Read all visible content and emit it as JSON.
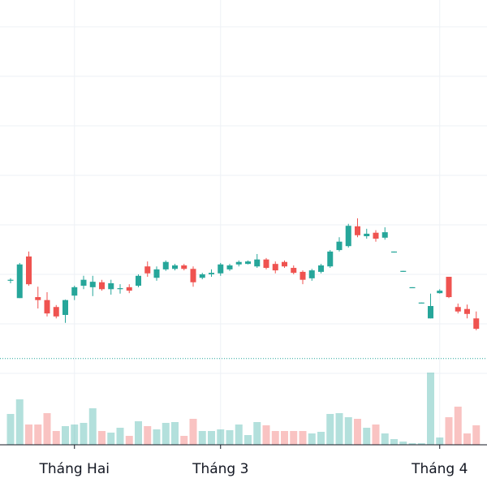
{
  "chart_data": {
    "type": "candlestick",
    "categories": [
      null,
      null,
      null,
      null,
      null,
      null,
      null,
      "Tháng Hai",
      null,
      null,
      null,
      null,
      null,
      null,
      null,
      null,
      null,
      null,
      null,
      null,
      null,
      null,
      null,
      "Tháng 3",
      null,
      null,
      null,
      null,
      null,
      null,
      null,
      null,
      null,
      null,
      null,
      null,
      null,
      null,
      null,
      null,
      null,
      null,
      null,
      null,
      null,
      null,
      null,
      "Tháng 4",
      null,
      null,
      null,
      null
    ],
    "open": [
      28.7,
      25.2,
      33.6,
      25.4,
      24.8,
      23.4,
      21.8,
      25.7,
      27.7,
      27.4,
      28.4,
      27.0,
      27.0,
      27.4,
      27.7,
      31.6,
      29.3,
      31.0,
      31.1,
      31.8,
      31.1,
      29.3,
      30.0,
      30.2,
      31.0,
      32.0,
      32.1,
      31.6,
      33.0,
      32.1,
      32.5,
      31.3,
      30.5,
      29.2,
      30.5,
      31.6,
      34.9,
      35.7,
      39.7,
      37.7,
      38.4,
      37.4,
      34.4,
      30.5,
      27.2,
      24.1,
      21.1,
      26.2,
      29.5,
      23.4,
      23.0,
      21.1
    ],
    "high": [
      29.2,
      32.3,
      34.6,
      27.5,
      26.4,
      23.8,
      24.9,
      27.7,
      29.7,
      29.7,
      28.9,
      28.9,
      28.0,
      28.0,
      30.0,
      32.6,
      31.6,
      32.8,
      32.1,
      32.1,
      31.6,
      30.3,
      31.0,
      32.3,
      32.1,
      32.8,
      32.8,
      34.1,
      33.3,
      32.6,
      32.8,
      31.8,
      30.8,
      31.1,
      32.1,
      34.9,
      37.5,
      40.2,
      41.3,
      39.2,
      38.9,
      39.5,
      34.6,
      30.7,
      27.4,
      24.3,
      26.1,
      27.0,
      29.5,
      24.1,
      23.9,
      22.5
    ],
    "low": [
      28.2,
      25.2,
      27.7,
      23.1,
      21.5,
      21.1,
      20.2,
      24.8,
      27.0,
      25.6,
      26.7,
      25.9,
      26.1,
      26.2,
      27.4,
      29.5,
      28.7,
      30.7,
      30.8,
      30.8,
      27.5,
      29.0,
      29.5,
      29.7,
      30.7,
      31.6,
      32.0,
      31.3,
      31.0,
      30.2,
      31.3,
      30.0,
      28.0,
      28.7,
      30.2,
      31.3,
      34.6,
      35.4,
      37.5,
      37.2,
      36.6,
      37.0,
      34.4,
      30.5,
      27.2,
      24.1,
      21.1,
      26.1,
      25.2,
      22.1,
      21.1,
      18.7
    ],
    "close": [
      28.9,
      32.0,
      28.0,
      24.8,
      22.1,
      21.5,
      24.8,
      27.4,
      28.9,
      28.5,
      27.0,
      28.2,
      27.2,
      26.7,
      29.7,
      30.2,
      31.0,
      32.5,
      31.8,
      31.1,
      28.4,
      30.0,
      30.3,
      32.0,
      31.8,
      32.5,
      32.6,
      33.0,
      31.3,
      30.8,
      31.6,
      30.3,
      28.9,
      30.8,
      31.8,
      34.6,
      36.6,
      39.8,
      37.9,
      38.2,
      37.2,
      38.5,
      34.6,
      30.7,
      27.4,
      24.3,
      23.6,
      26.7,
      25.4,
      22.5,
      22.0,
      19.0
    ],
    "volume": [
      38,
      56,
      25,
      25,
      39,
      17,
      23,
      25,
      27,
      45,
      17,
      15,
      21,
      11,
      29,
      23,
      19,
      27,
      28,
      11,
      32,
      17,
      17,
      19,
      18,
      25,
      12,
      28,
      24,
      17,
      17,
      17,
      17,
      14,
      16,
      38,
      39,
      34,
      32,
      21,
      25,
      14,
      7,
      4,
      2,
      2,
      89,
      9,
      34,
      47,
      14,
      24
    ],
    "up_color": "#26a69a",
    "down_color": "#ef5350",
    "ylim": [
      0,
      85.4
    ],
    "yticks": [
      10,
      20,
      30,
      40,
      50,
      60,
      70,
      80
    ],
    "volume_lim": [
      0,
      100
    ],
    "price_line": 13.0,
    "grid": true
  }
}
